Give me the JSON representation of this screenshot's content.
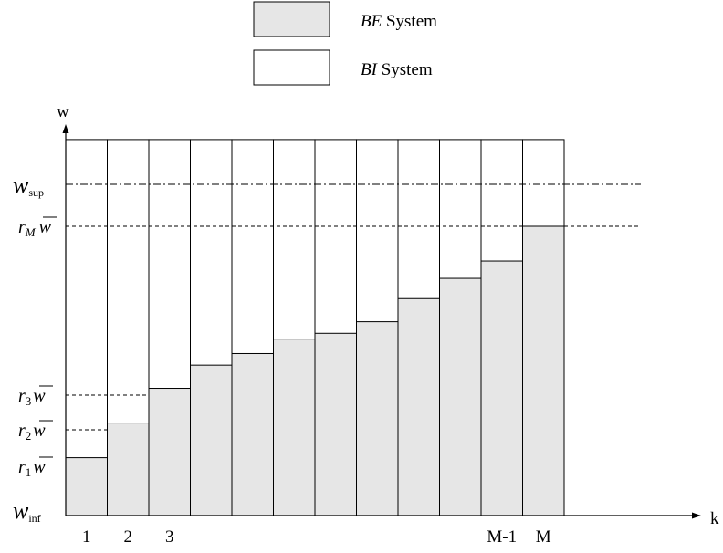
{
  "legend": {
    "items": [
      {
        "label_italic": "BE",
        "label_rest": " System",
        "fill": "#e6e6e6"
      },
      {
        "label_italic": "BI",
        "label_rest": " System",
        "fill": "#ffffff"
      }
    ]
  },
  "axes": {
    "y_label": "w",
    "x_label": "k"
  },
  "y_labels": {
    "sup": {
      "base": "w",
      "sub": "sup"
    },
    "rM": {
      "base": "r",
      "sub": "M",
      "bar": "w"
    },
    "r3": {
      "base": "r",
      "sub": "3",
      "bar": "w"
    },
    "r2": {
      "base": "r",
      "sub": "2",
      "bar": "w"
    },
    "r1": {
      "base": "r",
      "sub": "1",
      "bar": "w"
    },
    "inf": {
      "base": "w",
      "sub": "inf"
    }
  },
  "x_ticks": [
    {
      "index": 0,
      "label": "1"
    },
    {
      "index": 1,
      "label": "2"
    },
    {
      "index": 2,
      "label": "3"
    },
    {
      "index": 10,
      "label": "M-1"
    },
    {
      "index": 11,
      "label": "M"
    }
  ],
  "chart_data": {
    "type": "bar",
    "bar_count": 12,
    "be_levels": [
      0.2,
      0.32,
      0.44,
      0.52,
      0.56,
      0.61,
      0.63,
      0.67,
      0.75,
      0.82,
      0.88,
      1.0
    ],
    "bi_levels": [
      1.3,
      1.3,
      1.3,
      1.3,
      1.3,
      1.3,
      1.3,
      1.3,
      1.3,
      1.3,
      1.3,
      1.3
    ],
    "colors": {
      "be": "#e6e6e6",
      "bi": "#ffffff",
      "stroke": "#000000"
    }
  }
}
